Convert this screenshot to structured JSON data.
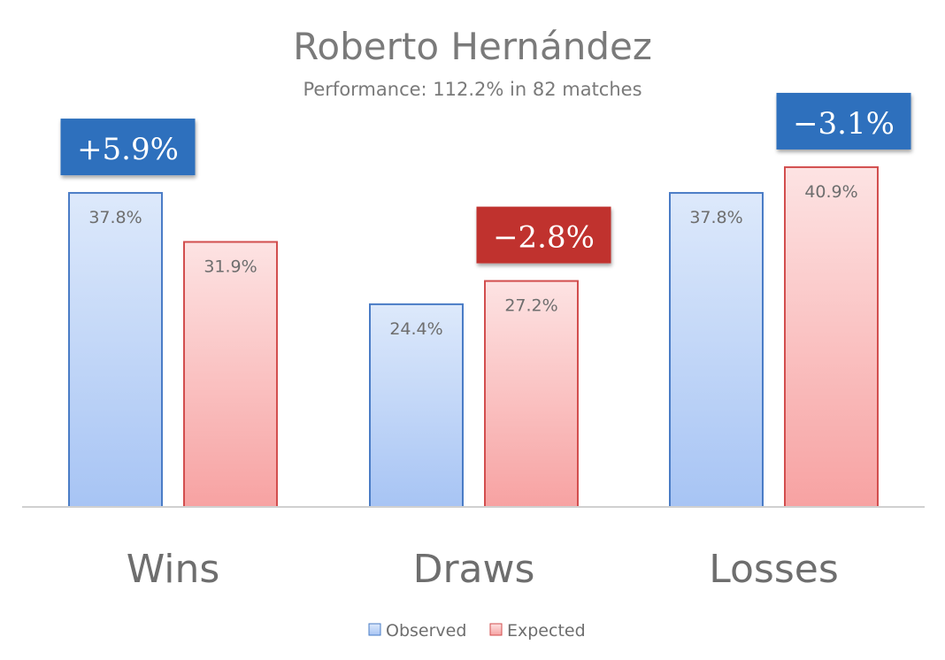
{
  "chart_data": {
    "type": "bar",
    "title": "Roberto Hernández",
    "subtitle": "Performance: 112.2% in 82 matches",
    "categories": [
      "Wins",
      "Draws",
      "Losses"
    ],
    "series": [
      {
        "name": "Observed",
        "values": [
          37.8,
          24.4,
          37.8
        ],
        "labels": [
          "37.8%",
          "24.4%",
          "37.8%"
        ]
      },
      {
        "name": "Expected",
        "values": [
          31.9,
          27.2,
          40.9
        ],
        "labels": [
          "31.9%",
          "27.2%",
          "40.9%"
        ]
      }
    ],
    "differences": [
      {
        "label": "+5.9%",
        "color": "blue"
      },
      {
        "label": "−2.8%",
        "color": "red"
      },
      {
        "label": "−3.1%",
        "color": "blue"
      }
    ],
    "ylim": [
      0,
      45
    ],
    "grid": false,
    "legend": "bottom-center"
  },
  "colors": {
    "observed_fill_top": "#dde9fb",
    "observed_fill_bottom": "#a7c4f4",
    "observed_stroke": "#4a7cc6",
    "expected_fill_top": "#fde3e3",
    "expected_fill_bottom": "#f7a2a2",
    "expected_stroke": "#d24e4e",
    "badge_blue": "#2f6fbd",
    "badge_red": "#c0302f",
    "axis": "#d0d0d0"
  }
}
